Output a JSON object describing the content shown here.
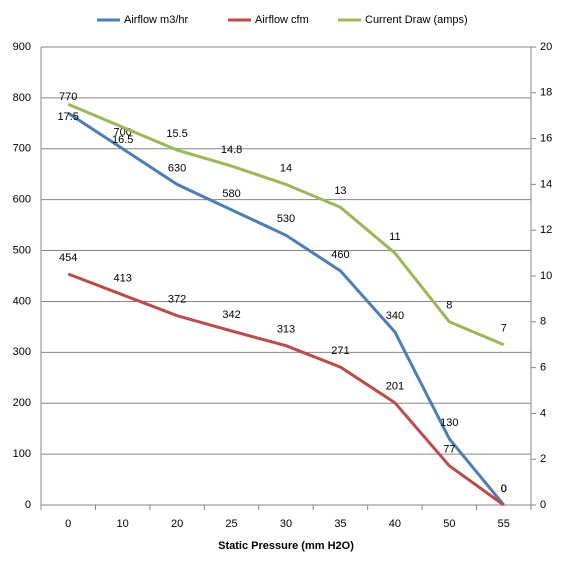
{
  "chart_data": {
    "type": "line",
    "x_label": "Static Pressure (mm H2O)",
    "categories": [
      "0",
      "10",
      "20",
      "25",
      "30",
      "35",
      "40",
      "50",
      "55"
    ],
    "series": [
      {
        "name": "Airflow m3/hr",
        "color": "#4a7ebb",
        "values": [
          770,
          700,
          630,
          580,
          530,
          460,
          340,
          130,
          0
        ]
      },
      {
        "name": "Airflow cfm",
        "color": "#be4b48",
        "values": [
          454,
          413,
          372,
          342,
          313,
          271,
          201,
          77,
          0
        ]
      },
      {
        "name": "Current Draw (amps)",
        "color": "#98b954",
        "axis": "y2",
        "values": [
          17.5,
          16.5,
          15.5,
          14.8,
          14,
          13,
          11,
          8,
          7
        ]
      }
    ],
    "ylim": [
      0,
      900
    ],
    "yticks": [
      0,
      100,
      200,
      300,
      400,
      500,
      600,
      700,
      800,
      900
    ],
    "y2lim": [
      0,
      20
    ],
    "y2ticks": [
      0,
      2,
      4,
      6,
      8,
      10,
      12,
      14,
      16,
      18,
      20
    ],
    "grid": true,
    "legend": "top"
  }
}
